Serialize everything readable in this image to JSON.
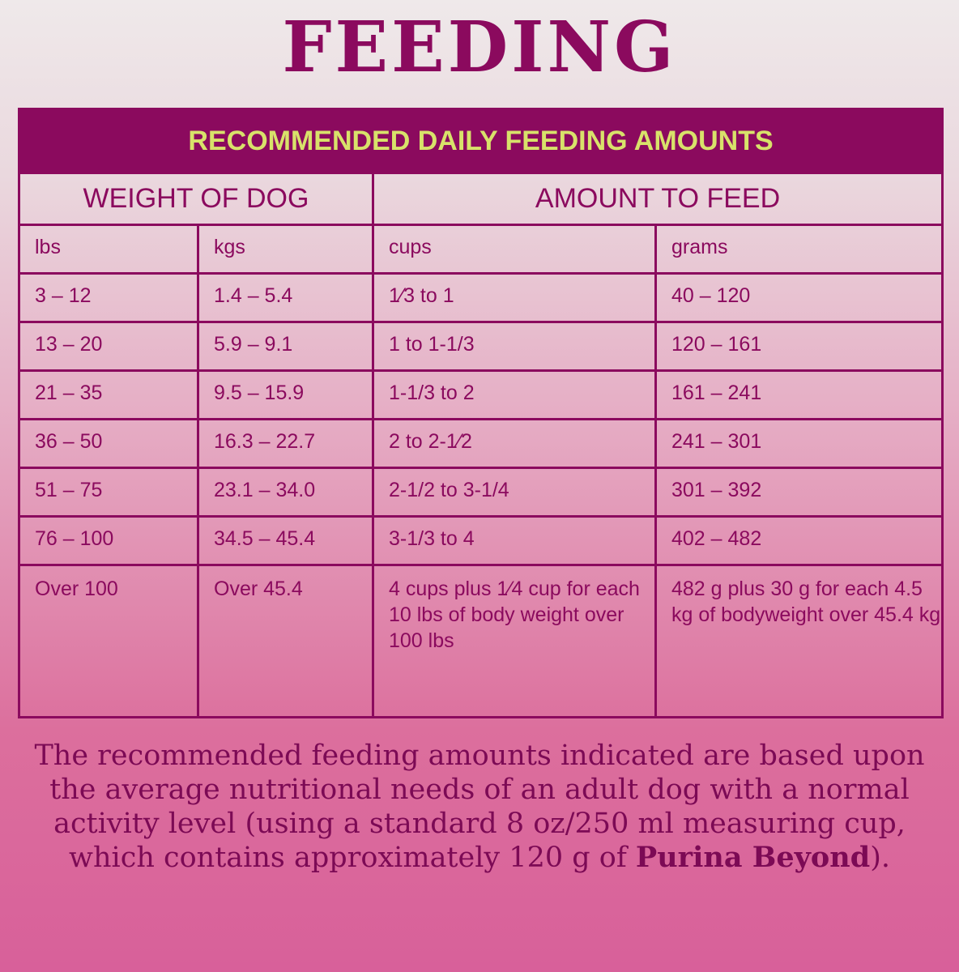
{
  "title": "FEEDING",
  "table": {
    "caption": "RECOMMENDED DAILY FEEDING AMOUNTS",
    "groups": [
      "WEIGHT OF DOG",
      "AMOUNT TO FEED"
    ],
    "columns": [
      "lbs",
      "kgs",
      "cups",
      "grams"
    ],
    "rows": [
      [
        "3 – 12",
        "1.4 – 5.4",
        "1⁄3 to 1",
        "40 – 120"
      ],
      [
        "13 – 20",
        "5.9 – 9.1",
        "1 to 1-1/3",
        "120 – 161"
      ],
      [
        "21 – 35",
        "9.5 – 15.9",
        "1-1/3 to 2",
        "161 – 241"
      ],
      [
        "36 – 50",
        "16.3 – 22.7",
        "2 to 2-1⁄2",
        "241 – 301"
      ],
      [
        "51 – 75",
        "23.1 – 34.0",
        "2-1/2 to 3-1/4",
        "301 – 392"
      ],
      [
        "76 – 100",
        "34.5 – 45.4",
        "3-1/3 to 4",
        "402 – 482"
      ],
      [
        "Over 100",
        "Over 45.4",
        "4 cups plus 1⁄4 cup for each 10 lbs of body weight over 100 lbs",
        "482 g plus 30 g for each 4.5 kg of bodyweight over 45.4 kg"
      ]
    ]
  },
  "note": {
    "text": "The recommended feeding amounts indicated are based upon the average nutritional needs of an adult dog with a normal activity level (using a standard 8 oz/250 ml measuring cup, which contains approximately 120 g of ",
    "brand": "Purina Beyond",
    "end": ")."
  }
}
